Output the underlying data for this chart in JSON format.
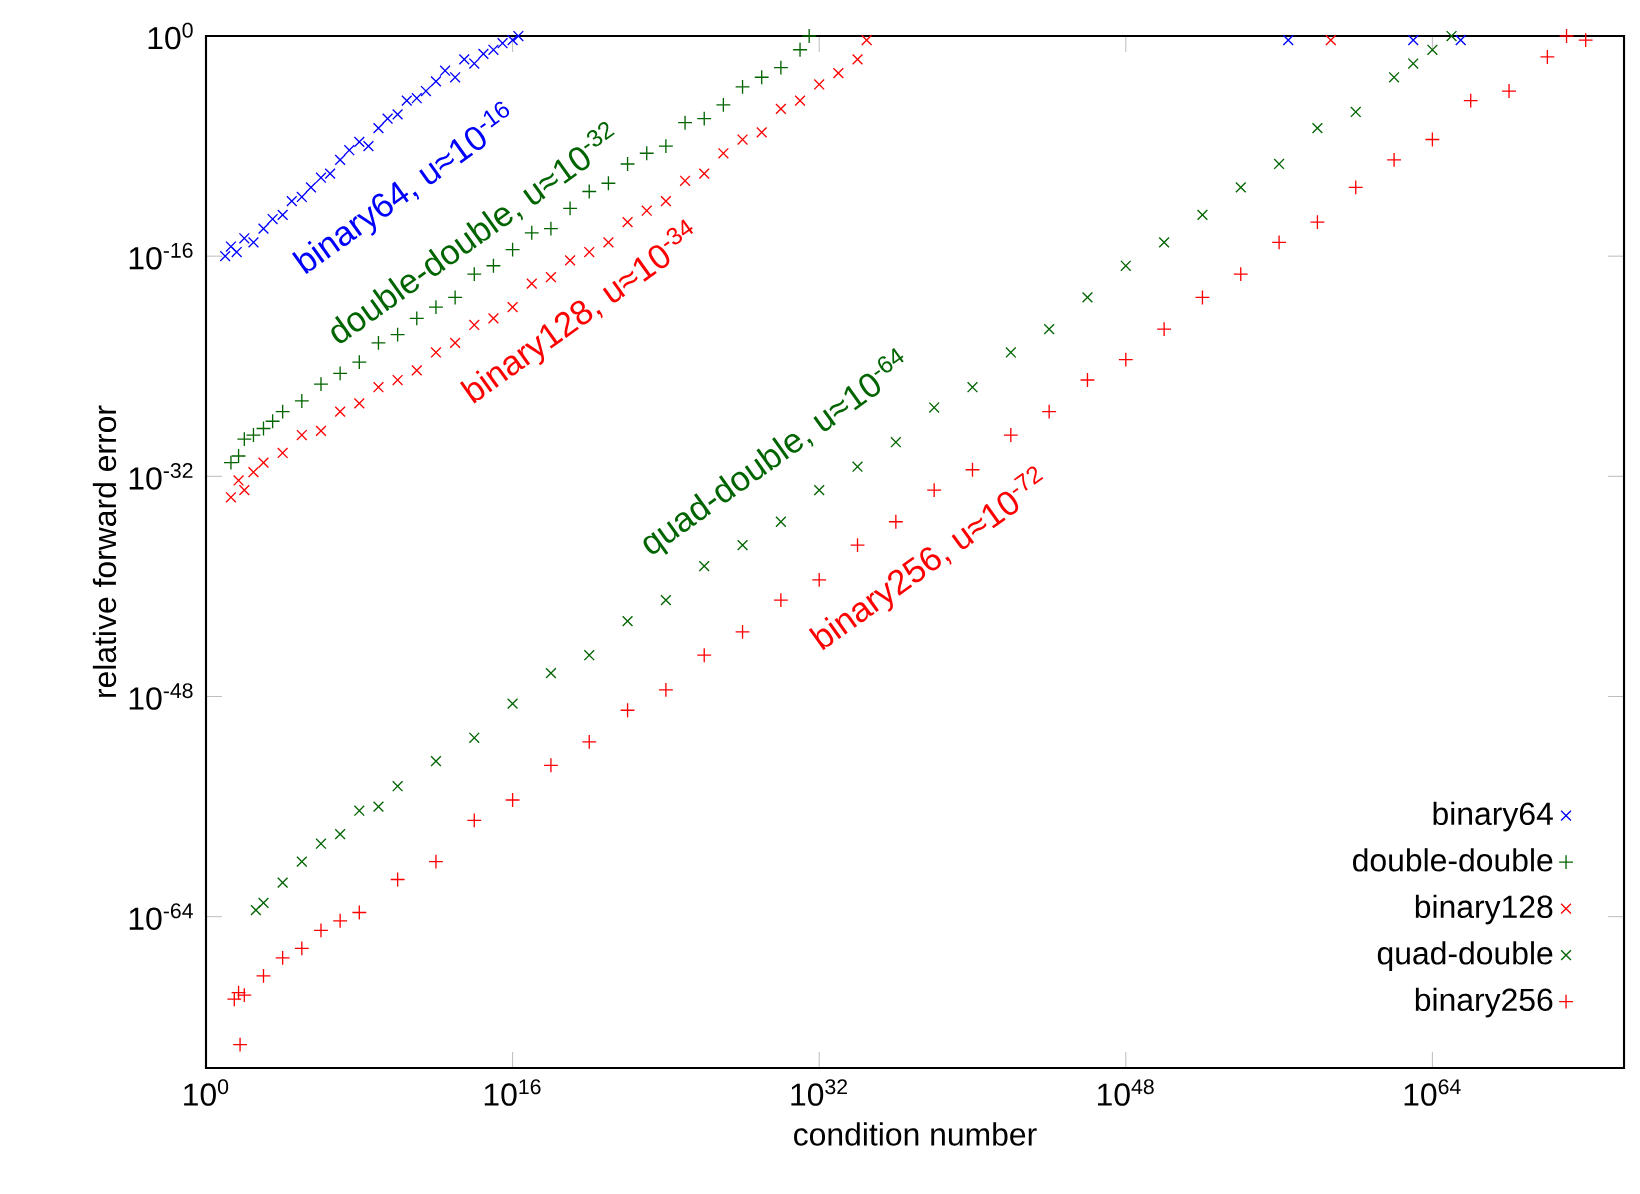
{
  "chart_data": {
    "type": "scatter",
    "xlabel": "condition number",
    "ylabel": "relative forward error",
    "log": "xy",
    "legend": "bottom right",
    "xlim": [
      1,
      1e+74
    ],
    "ylim": [
      1e-75,
      1
    ],
    "xticks": [
      {
        "value": 1,
        "label": "10$^{0}$"
      },
      {
        "value": 1e+16,
        "label": "10$^{16}$"
      },
      {
        "value": 1e+32,
        "label": "10$^{32}$"
      },
      {
        "value": 1e+48,
        "label": "10$^{48}$"
      },
      {
        "value": 1e+64,
        "label": "10$^{64}$"
      }
    ],
    "yticks": [
      {
        "value": 1e-64,
        "label": "10$^{-64}$"
      },
      {
        "value": 1e-48,
        "label": "10$^{-48}$"
      },
      {
        "value": 1e-32,
        "label": "10$^{-32}$"
      },
      {
        "value": 1e-16,
        "label": "10$^{-16}$"
      },
      {
        "value": 1,
        "label": "10$^{0}$"
      }
    ],
    "annotations": [
      "binary64, u≈10$^{-16}$",
      "double-double, u≈10$^{-32}$",
      "binary128, u≈10$^{-34}$",
      "quad-double, u≈10$^{-64}$",
      "binary256, u≈10$^{-72}$"
    ],
    "series": [
      {
        "name": "binary64",
        "color": "#0000ff",
        "marker": "cross",
        "x": [
          10.0,
          20.0,
          40.0,
          100.0,
          300.0,
          1000.0,
          3000.0,
          10000.0,
          30000.0,
          100000.0,
          300000.0,
          1000000.0,
          3000000.0,
          10000000.0,
          30000000.0,
          100000000.0,
          300000000.0,
          1000000000.0,
          3000000000.0,
          10000000000.0,
          30000000000.0,
          100000000000.0,
          300000000000.0,
          1000000000000.0,
          3000000000000.0,
          10000000000000.0,
          30000000000000.0,
          100000000000000.0,
          300000000000000.0,
          1000000000000000.0,
          3000000000000000.0,
          1e+16,
          2e+16,
          3e+56,
          1e+63,
          3e+65
        ],
        "values": [
          1e-16,
          5e-16,
          2e-16,
          2e-15,
          1e-15,
          1e-14,
          5e-14,
          1e-13,
          1e-12,
          2e-12,
          1e-11,
          5e-11,
          1e-10,
          1e-09,
          5e-09,
          2e-08,
          1e-08,
          2e-07,
          1e-06,
          2e-06,
          2e-05,
          3e-05,
          0.0001,
          0.0005,
          0.003,
          0.001,
          0.02,
          0.01,
          0.05,
          0.1,
          0.3,
          0.5,
          1,
          0.5,
          0.5,
          0.5
        ]
      },
      {
        "name": "double-double",
        "color": "#006400",
        "marker": "plus",
        "x": [
          20.0,
          50.0,
          100.0,
          300.0,
          1000.0,
          3000.0,
          10000.0,
          100000.0,
          1000000.0,
          10000000.0,
          100000000.0,
          1000000000.0,
          10000000000.0,
          100000000000.0,
          1000000000000.0,
          10000000000000.0,
          100000000000000.0,
          1000000000000000.0,
          1e+16,
          1e+17,
          1e+18,
          1e+19,
          1e+20,
          1e+21,
          1e+22,
          1e+23,
          1e+24,
          1e+25,
          1e+26,
          1e+27,
          1e+28,
          1e+29,
          1e+30,
          1e+31,
          3e+31
        ],
        "values": [
          1e-31,
          3e-31,
          5e-30,
          1e-29,
          3e-29,
          1e-28,
          5e-28,
          3e-27,
          5e-26,
          3e-25,
          2e-24,
          5e-23,
          2e-22,
          3e-21,
          2e-20,
          1e-19,
          5e-18,
          2e-17,
          3e-16,
          5e-15,
          1e-14,
          3e-13,
          5e-12,
          2e-11,
          5e-10,
          3e-09,
          1e-08,
          5e-07,
          1e-06,
          1e-05,
          0.0002,
          0.001,
          0.005,
          0.1,
          1
        ]
      },
      {
        "name": "binary128",
        "color": "#ff0000",
        "marker": "cross",
        "x": [
          20.0,
          50.0,
          100.0,
          300.0,
          1000.0,
          10000.0,
          100000.0,
          1000000.0,
          10000000.0,
          100000000.0,
          1000000000.0,
          10000000000.0,
          100000000000.0,
          1000000000000.0,
          10000000000000.0,
          100000000000000.0,
          1000000000000000.0,
          1e+16,
          1e+17,
          1e+18,
          1e+19,
          1e+20,
          1e+21,
          1e+22,
          1e+23,
          1e+24,
          1e+25,
          1e+26,
          1e+27,
          1e+28,
          1e+29,
          1e+30,
          1e+31,
          1e+32,
          1e+33,
          1e+34,
          3e+34,
          5e+58
        ],
        "values": [
          3e-34,
          5e-33,
          1e-33,
          2e-32,
          1e-31,
          5e-31,
          1e-29,
          2e-29,
          5e-28,
          2e-27,
          3e-26,
          1e-25,
          5e-25,
          1e-23,
          5e-23,
          1e-21,
          3e-21,
          2e-20,
          1e-18,
          3e-18,
          5e-17,
          2e-16,
          1e-15,
          3e-14,
          2e-13,
          1e-12,
          3e-11,
          1e-10,
          3e-09,
          3e-08,
          1e-07,
          5e-06,
          2e-05,
          0.0003,
          0.002,
          0.02,
          0.5,
          0.5
        ]
      },
      {
        "name": "quad-double",
        "color": "#006400",
        "marker": "cross",
        "x": [
          400.0,
          1000.0,
          10000.0,
          100000.0,
          1000000.0,
          10000000.0,
          100000000.0,
          1000000000.0,
          10000000000.0,
          1000000000000.0,
          100000000000000.0,
          1e+16,
          1e+18,
          1e+20,
          1e+22,
          1e+24,
          1e+26,
          1e+28,
          1e+30,
          1e+32,
          1e+34,
          1e+36,
          1e+38,
          1e+40,
          1e+42,
          1e+44,
          1e+46,
          1e+48,
          1e+50,
          1e+52,
          1e+54,
          1e+56,
          1e+58,
          1e+60,
          1e+62,
          1e+63,
          1e+64,
          1e+65
        ],
        "values": [
          3e-64,
          1e-63,
          3e-62,
          1e-60,
          2e-59,
          1e-58,
          5e-57,
          1e-56,
          3e-55,
          2e-53,
          1e-51,
          3e-49,
          5e-47,
          1e-45,
          3e-43,
          1e-41,
          3e-39,
          1e-37,
          5e-36,
          1e-33,
          5e-32,
          3e-30,
          1e-27,
          3e-26,
          1e-23,
          5e-22,
          1e-19,
          2e-17,
          1e-15,
          1e-13,
          1e-11,
          5e-10,
          2e-07,
          3e-06,
          0.001,
          0.01,
          0.1,
          1
        ]
      },
      {
        "name": "binary256",
        "color": "#ff0000",
        "marker": "plus",
        "x": [
          30.0,
          50.0,
          100.0,
          1000.0,
          10000.0,
          100000.0,
          1000000.0,
          10000000.0,
          100000000.0,
          10000000000.0,
          1000000000000.0,
          100000000000000.0,
          1e+16,
          1e+18,
          1e+20,
          1e+22,
          1e+24,
          1e+26,
          1e+28,
          1e+30,
          1e+32,
          1e+34,
          1e+36,
          1e+38,
          1e+40,
          1e+42,
          1e+44,
          1e+46,
          1e+48,
          1e+50,
          1e+52,
          1e+54,
          1e+56,
          1e+58,
          1e+60,
          1e+62,
          1e+64,
          1e+66,
          1e+68,
          1e+70,
          1e+71,
          1e+72,
          60.0
        ],
        "values": [
          1e-70,
          3e-70,
          2e-70,
          5e-69,
          1e-67,
          5e-67,
          1e-65,
          5e-65,
          2e-64,
          5e-62,
          1e-60,
          1e-57,
          3e-56,
          1e-53,
          5e-52,
          1e-49,
          3e-48,
          1e-45,
          5e-44,
          1e-41,
          3e-40,
          1e-37,
          5e-36,
          1e-33,
          3e-32,
          1e-29,
          5e-28,
          1e-25,
          3e-24,
          5e-22,
          1e-19,
          5e-18,
          1e-15,
          3e-14,
          1e-11,
          1e-09,
          3e-08,
          2e-05,
          0.0001,
          0.03,
          1,
          0.5,
          5e-74
        ]
      }
    ]
  }
}
